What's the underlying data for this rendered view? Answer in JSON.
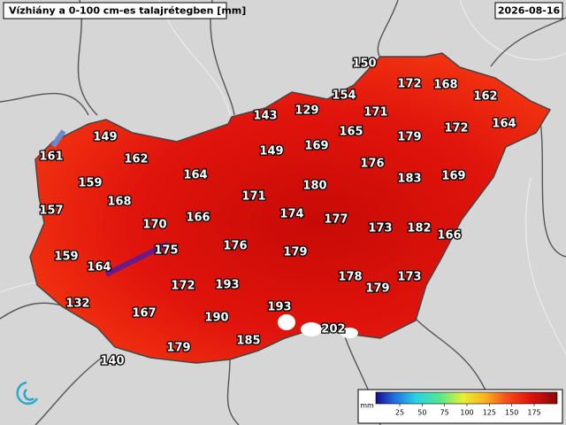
{
  "header": {
    "title": "Vízhiány a 0-100 cm-es talajrétegben [mm]",
    "date": "2026-08-16"
  },
  "stations": [
    150,
    172,
    168,
    162,
    154,
    129,
    143,
    171,
    164,
    149,
    165,
    179,
    172,
    169,
    149,
    161,
    162,
    176,
    183,
    169,
    164,
    159,
    180,
    171,
    168,
    157,
    174,
    166,
    177,
    170,
    173,
    182,
    166,
    175,
    176,
    179,
    159,
    164,
    178,
    173,
    172,
    193,
    179,
    132,
    193,
    167,
    190,
    202,
    185,
    179,
    140
  ],
  "legend": {
    "unit": "mm",
    "ticks": [
      25,
      50,
      75,
      100,
      125,
      150,
      175
    ]
  }
}
